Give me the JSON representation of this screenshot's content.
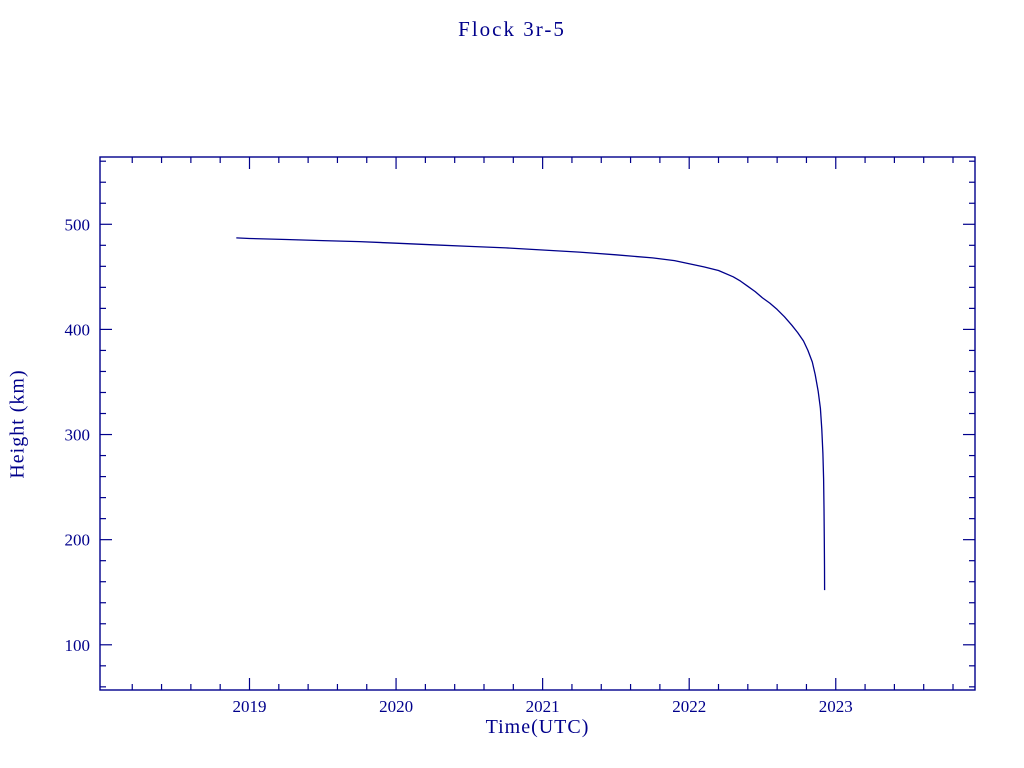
{
  "page": {
    "background": "#ffffff",
    "accent": "#00008b"
  },
  "chart_data": {
    "type": "line",
    "title": "Flock 3r-5",
    "xlabel": "Time(UTC)",
    "ylabel": "Height (km)",
    "xlim": [
      2017.98,
      2023.95
    ],
    "ylim": [
      57,
      564
    ],
    "x_ticks": [
      2019,
      2020,
      2021,
      2022,
      2023
    ],
    "y_ticks": [
      100,
      200,
      300,
      400,
      500
    ],
    "x_minor_step": 0.2,
    "y_minor_step": 20,
    "grid": false,
    "legend": "none",
    "axis_color": "#00008b",
    "line_color": "#00008b",
    "series": [
      {
        "name": "Flock 3r-5 height",
        "points": [
          [
            2018.91,
            487
          ],
          [
            2019.0,
            486.5
          ],
          [
            2019.25,
            485.5
          ],
          [
            2019.5,
            484.5
          ],
          [
            2019.75,
            483.5
          ],
          [
            2020.0,
            482
          ],
          [
            2020.25,
            480.5
          ],
          [
            2020.5,
            479
          ],
          [
            2020.75,
            477.5
          ],
          [
            2021.0,
            475.5
          ],
          [
            2021.25,
            473.5
          ],
          [
            2021.5,
            471
          ],
          [
            2021.75,
            468
          ],
          [
            2021.9,
            465.5
          ],
          [
            2022.0,
            462.5
          ],
          [
            2022.1,
            459.5
          ],
          [
            2022.2,
            456
          ],
          [
            2022.3,
            450
          ],
          [
            2022.35,
            446
          ],
          [
            2022.4,
            441
          ],
          [
            2022.45,
            436
          ],
          [
            2022.5,
            430
          ],
          [
            2022.55,
            425
          ],
          [
            2022.6,
            419
          ],
          [
            2022.65,
            412
          ],
          [
            2022.7,
            404
          ],
          [
            2022.74,
            397
          ],
          [
            2022.78,
            389
          ],
          [
            2022.81,
            380
          ],
          [
            2022.84,
            369
          ],
          [
            2022.86,
            357
          ],
          [
            2022.88,
            341
          ],
          [
            2022.895,
            325
          ],
          [
            2022.905,
            305
          ],
          [
            2022.912,
            282
          ],
          [
            2022.917,
            258
          ],
          [
            2022.92,
            230
          ],
          [
            2022.922,
            200
          ],
          [
            2022.923,
            175
          ],
          [
            2022.924,
            152
          ]
        ]
      }
    ]
  }
}
